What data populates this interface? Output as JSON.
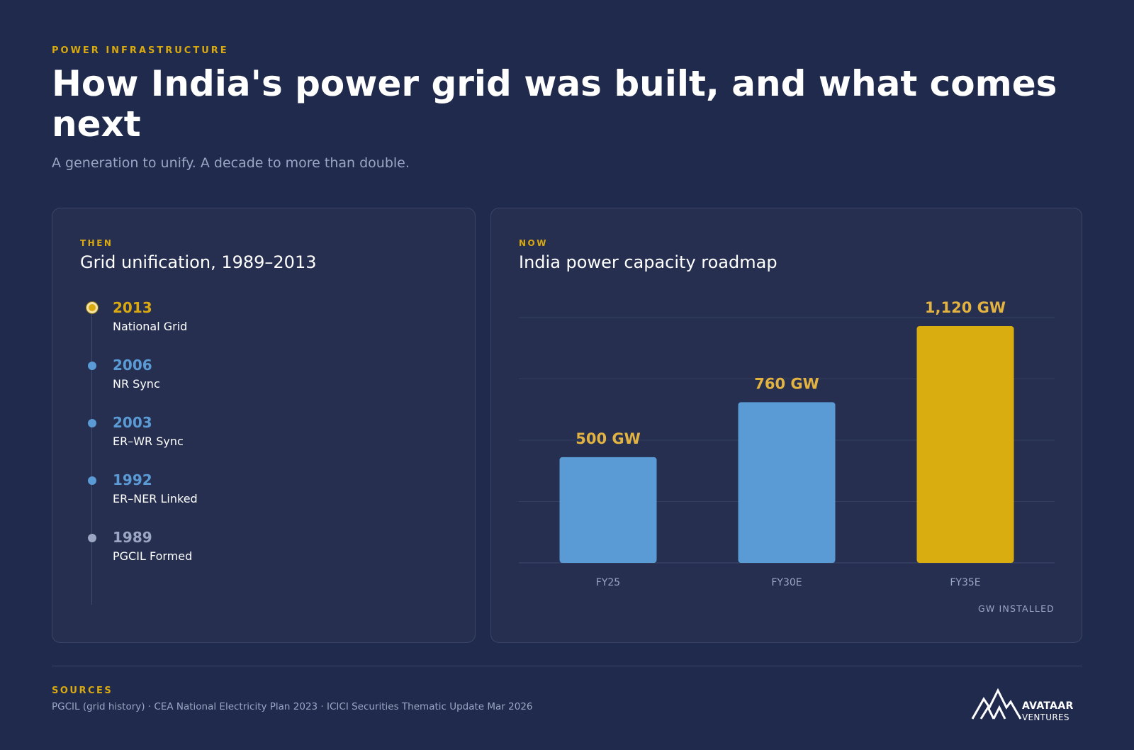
{
  "header": {
    "eyebrow": "POWER INFRASTRUCTURE",
    "title": "How India's power grid was built, and what comes next",
    "subtitle": "A generation to unify. A decade to more than double."
  },
  "then_card": {
    "tag": "THEN",
    "title": "Grid unification, 1989–2013",
    "timeline": [
      {
        "year": "2013",
        "label": "National Grid",
        "highlight": true
      },
      {
        "year": "2006",
        "label": "NR Sync"
      },
      {
        "year": "2003",
        "label": "ER–WR Sync"
      },
      {
        "year": "1992",
        "label": "ER–NER Linked"
      },
      {
        "year": "1989",
        "label": "PGCIL Formed",
        "muted": true
      }
    ]
  },
  "now_card": {
    "tag": "NOW",
    "title": "India power capacity roadmap",
    "unit_label": "GW INSTALLED"
  },
  "chart_data": {
    "type": "bar",
    "title": "India power capacity roadmap",
    "categories": [
      "FY25",
      "FY30E",
      "FY35E"
    ],
    "values": [
      500,
      760,
      1120
    ],
    "value_labels": [
      "500 GW",
      "760 GW",
      "1,120 GW"
    ],
    "ylabel": "GW INSTALLED",
    "ylim": [
      0,
      1150
    ],
    "grid": true,
    "colors": [
      "#5b9bd5",
      "#5b9bd5",
      "#d9ac0f"
    ],
    "label_color": "#e3b341"
  },
  "colors": {
    "background": "#1f2a4d",
    "card": "#262f50",
    "accent_gold": "#d9a90f",
    "accent_blue": "#5b9bd5",
    "muted": "#9aa6c2"
  },
  "footer": {
    "sources_label": "SOURCES",
    "sources_text": "PGCIL (grid history) · CEA National Electricity Plan 2023 · ICICI Securities Thematic Update Mar 2026",
    "logo_name": "AVATAAR",
    "logo_sub": "VENTURES"
  }
}
